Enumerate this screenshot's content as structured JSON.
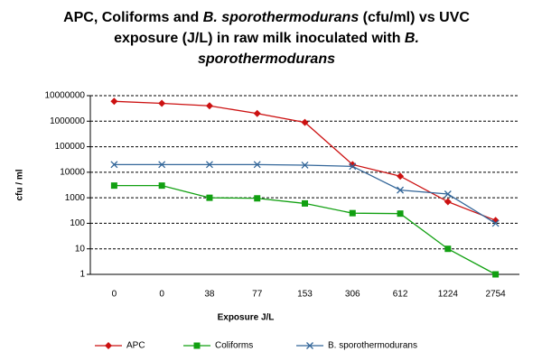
{
  "chart_data": {
    "type": "line",
    "title": [
      "APC, Coliforms and ",
      "B. sporothermodurans",
      " (cfu/ml) vs UVC exposure (J/L) in raw milk inoculated with ",
      "B. sporothermodurans"
    ],
    "x_label": "Exposure J/L",
    "y_label": "cfu / ml",
    "categories": [
      "0",
      "0",
      "38",
      "77",
      "153",
      "306",
      "612",
      "1224",
      "2754"
    ],
    "series": [
      {
        "name": "APC",
        "color": "#cc1111",
        "marker": "diamond",
        "values": [
          6000000,
          5000000,
          4000000,
          2000000,
          900000,
          20000,
          7000,
          700,
          130
        ]
      },
      {
        "name": "Coliforms",
        "color": "#11a011",
        "marker": "square",
        "values": [
          3000,
          3000,
          1000,
          950,
          600,
          250,
          240,
          10,
          1
        ]
      },
      {
        "name": "B. sporothermodurans",
        "color": "#336699",
        "marker": "x",
        "values": [
          20000,
          20000,
          20000,
          20000,
          19000,
          17000,
          2000,
          1400,
          100
        ]
      }
    ],
    "log_y": true,
    "ylim": [
      1,
      10000000
    ],
    "yticks": [
      1,
      10,
      100,
      1000,
      10000,
      100000,
      1000000,
      10000000
    ],
    "grid": true,
    "legend": "bottom"
  }
}
